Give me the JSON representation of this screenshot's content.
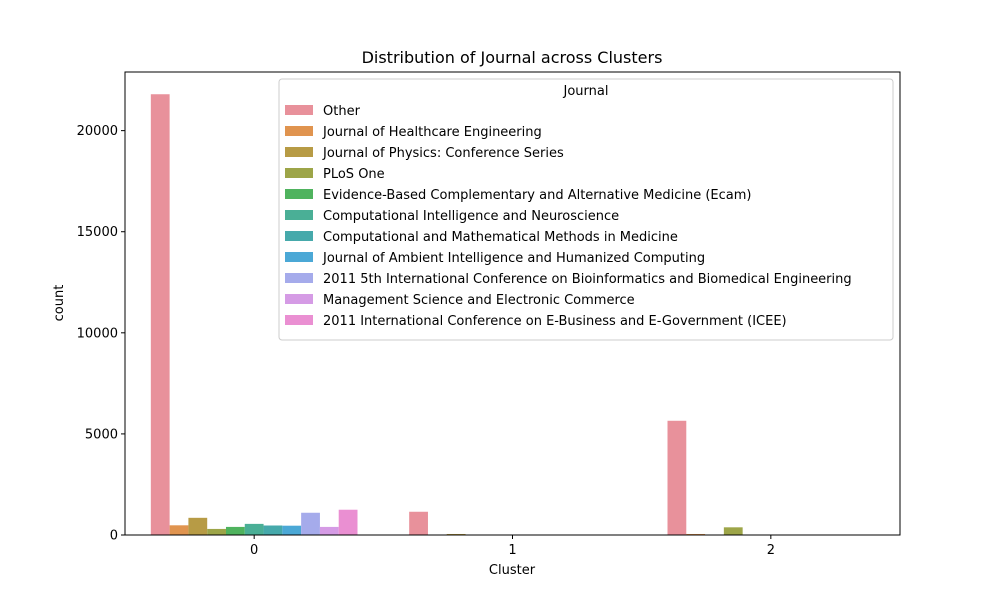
{
  "chart_data": {
    "type": "bar",
    "title": "Distribution of Journal across Clusters",
    "xlabel": "Cluster",
    "ylabel": "count",
    "categories": [
      "0",
      "1",
      "2"
    ],
    "ylim": [
      0,
      22900
    ],
    "yticks": [
      0,
      5000,
      10000,
      15000,
      20000
    ],
    "grid": false,
    "legend": {
      "title": "Journal",
      "position": "top-right"
    },
    "series": [
      {
        "name": "Other",
        "color": "#e8919b",
        "values": [
          21800,
          1150,
          5650
        ]
      },
      {
        "name": "Journal of Healthcare Engineering",
        "color": "#e0944f",
        "values": [
          480,
          0,
          50
        ]
      },
      {
        "name": "Journal of Physics: Conference Series",
        "color": "#b79b45",
        "values": [
          850,
          50,
          0
        ]
      },
      {
        "name": "PLoS One",
        "color": "#9da548",
        "values": [
          300,
          0,
          380
        ]
      },
      {
        "name": "Evidence-Based Complementary and Alternative Medicine (Ecam)",
        "color": "#4fb35e",
        "values": [
          400,
          0,
          0
        ]
      },
      {
        "name": "Computational Intelligence and Neuroscience",
        "color": "#4aaf96",
        "values": [
          550,
          0,
          0
        ]
      },
      {
        "name": "Computational and Mathematical Methods in Medicine",
        "color": "#46a9ab",
        "values": [
          470,
          0,
          0
        ]
      },
      {
        "name": "Journal of Ambient Intelligence and Humanized Computing",
        "color": "#4ba8d6",
        "values": [
          460,
          0,
          0
        ]
      },
      {
        "name": "2011 5th International Conference on Bioinformatics and Biomedical Engineering",
        "color": "#a5abeb",
        "values": [
          1100,
          0,
          0
        ]
      },
      {
        "name": "Management Science and Electronic Commerce",
        "color": "#d59be5",
        "values": [
          400,
          0,
          0
        ]
      },
      {
        "name": "2011 International Conference on E-Business and E-Government (ICEE)",
        "color": "#ea8fd2",
        "values": [
          1250,
          0,
          0
        ]
      }
    ]
  }
}
